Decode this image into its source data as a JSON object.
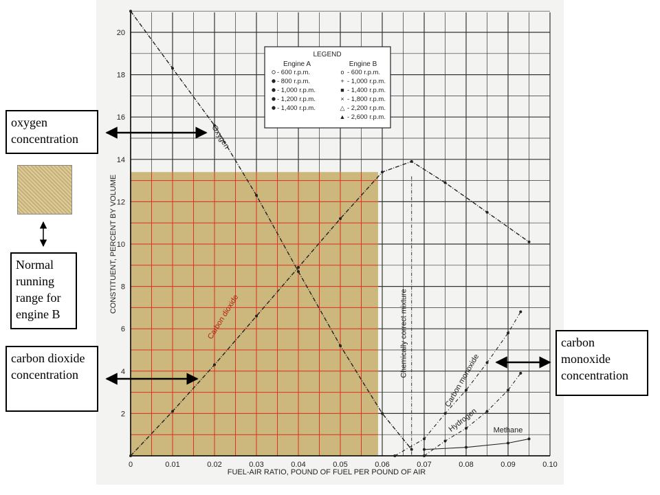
{
  "chart_data": {
    "type": "line",
    "xlabel": "FUEL-AIR RATIO, POUND OF FUEL PER POUND OF AIR",
    "ylabel": "CONSTITUENT, PERCENT BY VOLUME",
    "xlim": [
      0,
      0.1
    ],
    "ylim": [
      0,
      21
    ],
    "x_ticks": [
      "0",
      "0.01",
      "0.02",
      "0.03",
      "0.04",
      "0.05",
      "0.06",
      "0.07",
      "0.08",
      "0.09",
      "0.10"
    ],
    "y_ticks": [
      "2",
      "4",
      "6",
      "8",
      "10",
      "12",
      "14",
      "16",
      "18",
      "20"
    ],
    "grid": true,
    "series": [
      {
        "name": "Oxygen",
        "x": [
          0,
          0.01,
          0.02,
          0.03,
          0.04,
          0.05,
          0.06,
          0.067
        ],
        "y": [
          21.0,
          18.3,
          15.6,
          12.3,
          8.7,
          5.2,
          2.0,
          0.3
        ]
      },
      {
        "name": "Carbon dioxide",
        "x": [
          0,
          0.01,
          0.02,
          0.03,
          0.04,
          0.05,
          0.06,
          0.067,
          0.075,
          0.085,
          0.095
        ],
        "y": [
          0,
          2.1,
          4.3,
          6.6,
          8.9,
          11.2,
          13.4,
          13.9,
          12.9,
          11.5,
          10.1
        ]
      },
      {
        "name": "Carbon monoxide",
        "x": [
          0.063,
          0.07,
          0.075,
          0.08,
          0.085,
          0.09,
          0.093
        ],
        "y": [
          0,
          0.8,
          2.0,
          3.1,
          4.4,
          5.8,
          6.8
        ]
      },
      {
        "name": "Hydrogen",
        "x": [
          0.07,
          0.075,
          0.08,
          0.085,
          0.09,
          0.093
        ],
        "y": [
          0,
          0.7,
          1.3,
          2.1,
          3.1,
          3.9
        ]
      },
      {
        "name": "Methane",
        "x": [
          0.07,
          0.08,
          0.09,
          0.095
        ],
        "y": [
          0.3,
          0.4,
          0.6,
          0.8
        ]
      }
    ],
    "annotations": {
      "chemically_correct_mixture": {
        "label": "Chemically correct mixture",
        "x": 0.067
      },
      "normal_running_range": {
        "x": [
          0.0,
          0.059
        ],
        "y": [
          0,
          13.4
        ],
        "color": "#c8b070"
      }
    },
    "legend": {
      "title": "LEGEND",
      "placement": "top-center",
      "engine_a_title": "Engine A",
      "engine_b_title": "Engine B",
      "engine_a": [
        "600 r.p.m.",
        "800 r.p.m.",
        "1,000 r.p.m.",
        "1,200 r.p.m.",
        "1,400 r.p.m."
      ],
      "engine_b": [
        "600 r.p.m.",
        "1,000 r.p.m.",
        "1,400 r.p.m.",
        "1,800 r.p.m.",
        "2,200 r.p.m.",
        "2,600 r.p.m."
      ]
    }
  },
  "callouts": {
    "oxygen": "oxygen concentration",
    "normal_range": "Normal running range for engine B",
    "co2": "carbon dioxide concentration",
    "co": "carbon monoxide concentration"
  },
  "colors": {
    "shading": "#c8b070",
    "shading_grid": "#e03020",
    "grid": "#333333"
  }
}
